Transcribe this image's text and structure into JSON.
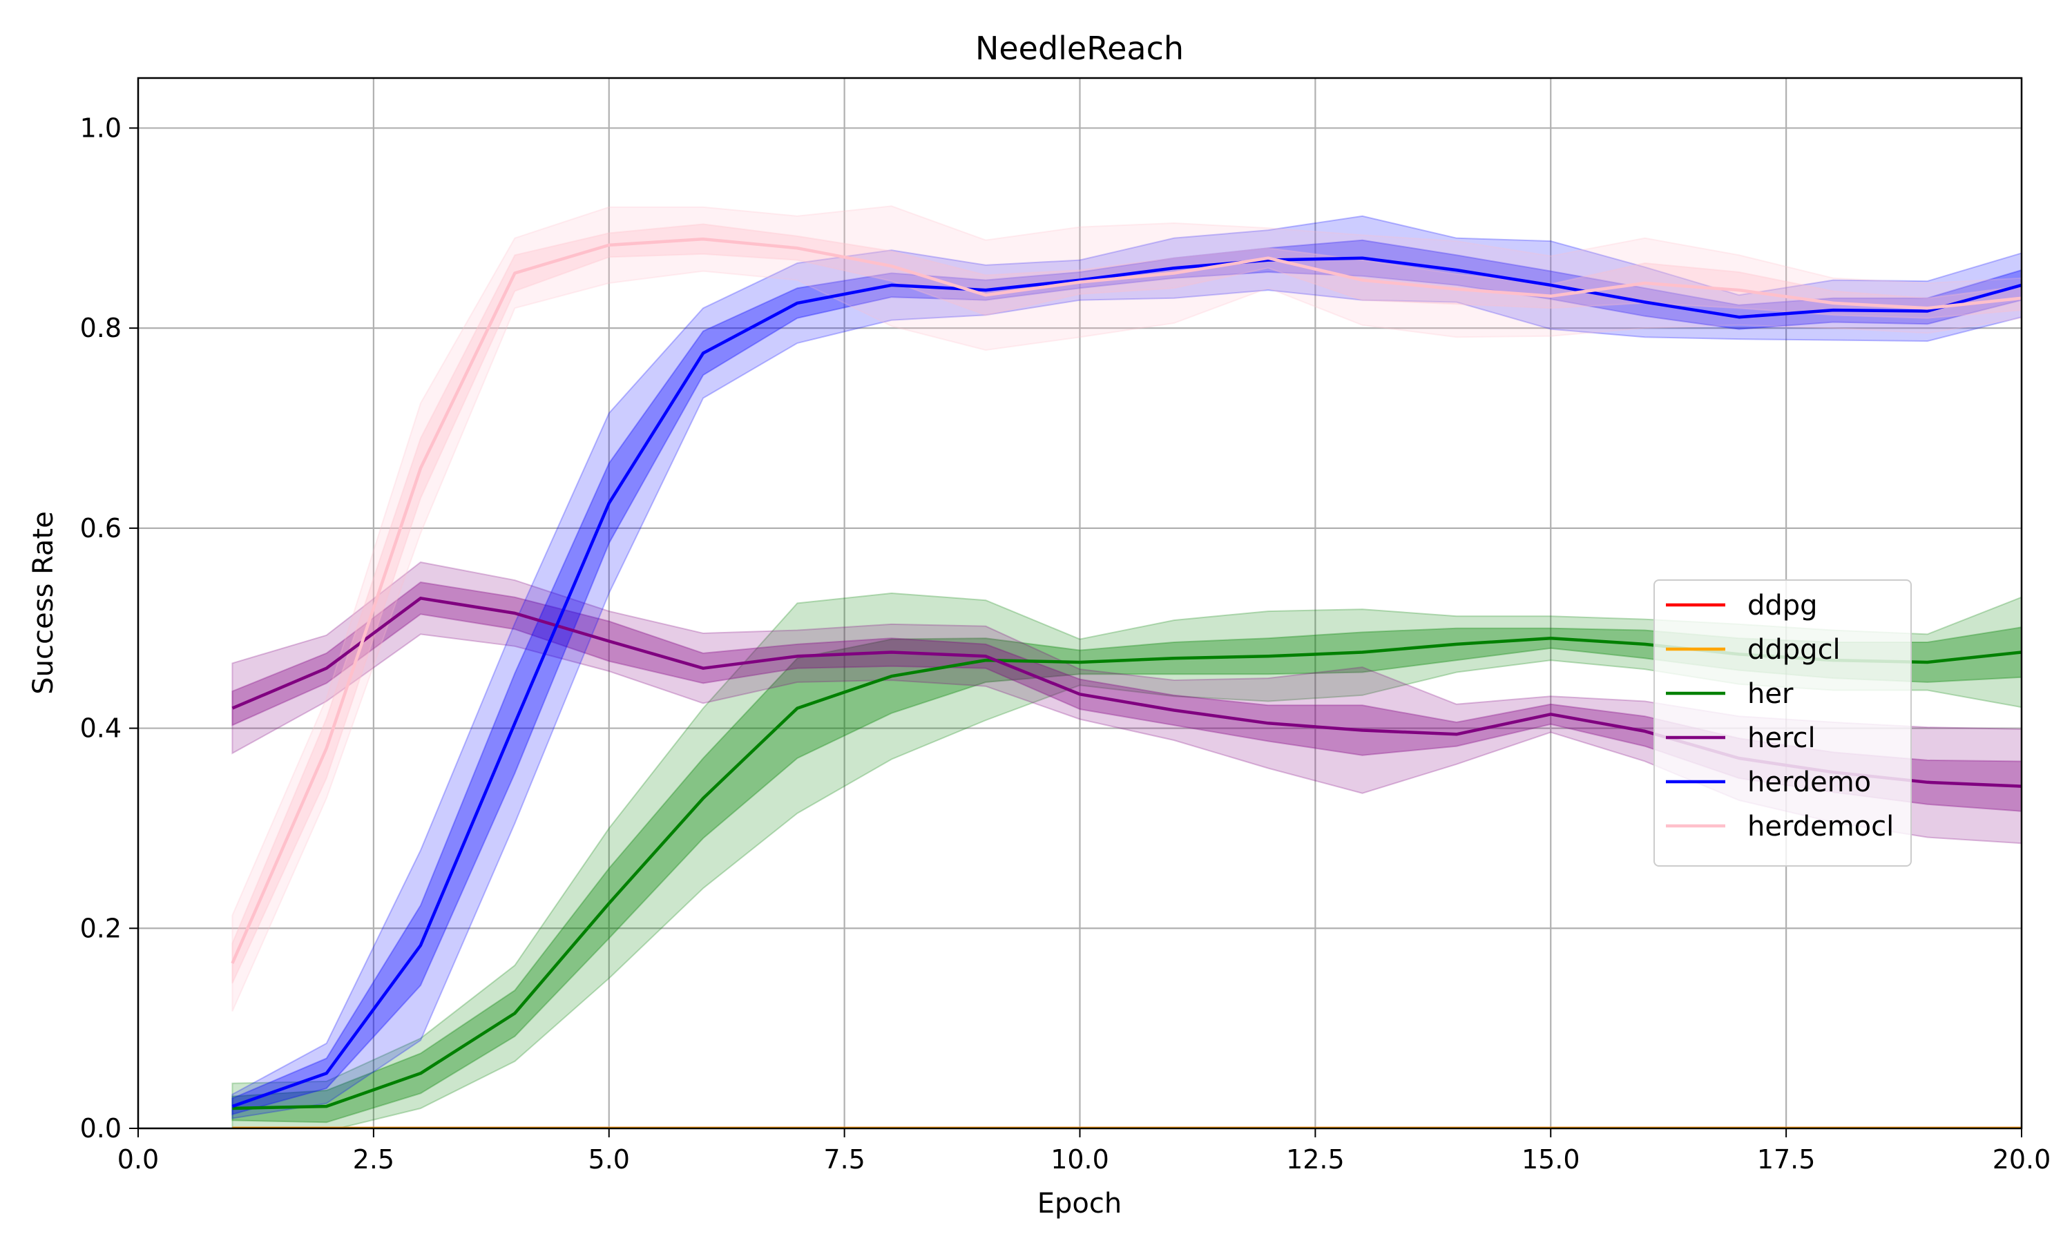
{
  "chart_data": {
    "type": "line",
    "title": "NeedleReach",
    "xlabel": "Epoch",
    "ylabel": "Success Rate",
    "xlim": [
      0,
      20
    ],
    "ylim": [
      0,
      1.05
    ],
    "xticks": [
      0,
      2.5,
      5,
      7.5,
      10,
      12.5,
      15,
      17.5,
      20
    ],
    "xtick_labels": [
      "0.0",
      "2.5",
      "5.0",
      "7.5",
      "10.0",
      "12.5",
      "15.0",
      "17.5",
      "20.0"
    ],
    "yticks": [
      0,
      0.2,
      0.4,
      0.6,
      0.8,
      1.0
    ],
    "ytick_labels": [
      "0.0",
      "0.2",
      "0.4",
      "0.6",
      "0.8",
      "1.0"
    ],
    "grid": true,
    "legend_position": "center-right",
    "x": [
      1,
      2,
      3,
      4,
      5,
      6,
      7,
      8,
      9,
      10,
      11,
      12,
      13,
      14,
      15,
      16,
      17,
      18,
      19,
      20
    ],
    "series": [
      {
        "name": "ddpg",
        "color": "#ff0000",
        "mean": [
          0,
          0,
          0,
          0,
          0,
          0,
          0,
          0,
          0,
          0,
          0,
          0,
          0,
          0,
          0,
          0,
          0,
          0,
          0,
          0
        ],
        "band1": [
          0,
          0,
          0,
          0,
          0,
          0,
          0,
          0,
          0,
          0,
          0,
          0,
          0,
          0,
          0,
          0,
          0,
          0,
          0,
          0
        ],
        "band2": [
          0,
          0,
          0,
          0,
          0,
          0,
          0,
          0,
          0,
          0,
          0,
          0,
          0,
          0,
          0,
          0,
          0,
          0,
          0,
          0
        ]
      },
      {
        "name": "ddpgcl",
        "color": "#ffa500",
        "mean": [
          0,
          0,
          0,
          0,
          0,
          0,
          0,
          0,
          0,
          0,
          0,
          0,
          0,
          0,
          0,
          0,
          0,
          0,
          0,
          0
        ],
        "band1": [
          0,
          0,
          0,
          0,
          0,
          0,
          0,
          0,
          0,
          0,
          0,
          0,
          0,
          0,
          0,
          0,
          0,
          0,
          0,
          0
        ],
        "band2": [
          0,
          0,
          0,
          0,
          0,
          0,
          0,
          0,
          0,
          0,
          0,
          0,
          0,
          0,
          0,
          0,
          0,
          0,
          0,
          0
        ]
      },
      {
        "name": "her",
        "color": "#008000",
        "mean": [
          0.02,
          0.022,
          0.055,
          0.115,
          0.225,
          0.33,
          0.42,
          0.452,
          0.468,
          0.466,
          0.47,
          0.472,
          0.476,
          0.484,
          0.49,
          0.484,
          0.474,
          0.468,
          0.466,
          0.476
        ],
        "band1": [
          0.012,
          0.016,
          0.02,
          0.023,
          0.035,
          0.04,
          0.05,
          0.037,
          0.022,
          0.012,
          0.016,
          0.018,
          0.02,
          0.016,
          0.01,
          0.014,
          0.016,
          0.018,
          0.02,
          0.025
        ],
        "band2": [
          0.025,
          0.025,
          0.035,
          0.048,
          0.075,
          0.09,
          0.105,
          0.083,
          0.06,
          0.023,
          0.038,
          0.045,
          0.043,
          0.028,
          0.022,
          0.025,
          0.03,
          0.03,
          0.028,
          0.055
        ]
      },
      {
        "name": "hercl",
        "color": "#800080",
        "mean": [
          0.42,
          0.46,
          0.53,
          0.515,
          0.487,
          0.46,
          0.472,
          0.476,
          0.472,
          0.434,
          0.418,
          0.405,
          0.398,
          0.394,
          0.414,
          0.397,
          0.37,
          0.356,
          0.346,
          0.342
        ],
        "band1": [
          0.017,
          0.015,
          0.016,
          0.016,
          0.02,
          0.015,
          0.012,
          0.014,
          0.012,
          0.015,
          0.015,
          0.018,
          0.025,
          0.012,
          0.01,
          0.015,
          0.02,
          0.02,
          0.022,
          0.025
        ],
        "band2": [
          0.045,
          0.033,
          0.036,
          0.033,
          0.03,
          0.035,
          0.026,
          0.028,
          0.03,
          0.025,
          0.03,
          0.045,
          0.063,
          0.03,
          0.018,
          0.03,
          0.042,
          0.05,
          0.055,
          0.057
        ]
      },
      {
        "name": "herdemo",
        "color": "#0000ff",
        "mean": [
          0.022,
          0.055,
          0.183,
          0.405,
          0.625,
          0.775,
          0.825,
          0.843,
          0.838,
          0.848,
          0.86,
          0.868,
          0.87,
          0.858,
          0.843,
          0.826,
          0.811,
          0.818,
          0.817,
          0.843
        ],
        "band1": [
          0.008,
          0.015,
          0.04,
          0.05,
          0.04,
          0.022,
          0.015,
          0.012,
          0.01,
          0.008,
          0.01,
          0.012,
          0.018,
          0.015,
          0.014,
          0.014,
          0.012,
          0.012,
          0.013,
          0.015
        ],
        "band2": [
          0.012,
          0.03,
          0.095,
          0.1,
          0.09,
          0.045,
          0.04,
          0.035,
          0.025,
          0.02,
          0.03,
          0.03,
          0.042,
          0.032,
          0.044,
          0.035,
          0.022,
          0.03,
          0.03,
          0.032
        ]
      },
      {
        "name": "herdemocl",
        "color": "#ffc0cb",
        "mean": [
          0.165,
          0.38,
          0.66,
          0.855,
          0.883,
          0.889,
          0.88,
          0.862,
          0.833,
          0.846,
          0.855,
          0.87,
          0.848,
          0.839,
          0.832,
          0.845,
          0.838,
          0.825,
          0.82,
          0.83
        ],
        "band1": [
          0.02,
          0.03,
          0.03,
          0.018,
          0.012,
          0.015,
          0.012,
          0.015,
          0.02,
          0.012,
          0.015,
          0.01,
          0.02,
          0.015,
          0.012,
          0.02,
          0.018,
          0.012,
          0.01,
          0.012
        ],
        "band2": [
          0.048,
          0.05,
          0.065,
          0.035,
          0.038,
          0.032,
          0.032,
          0.06,
          0.055,
          0.055,
          0.05,
          0.03,
          0.045,
          0.048,
          0.04,
          0.045,
          0.035,
          0.025,
          0.025,
          0.02
        ]
      }
    ]
  }
}
